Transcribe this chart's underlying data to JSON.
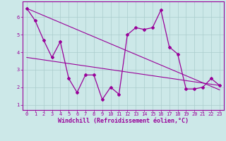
{
  "title": "",
  "xlabel": "Windchill (Refroidissement éolien,°C)",
  "ylabel": "",
  "bg_color": "#cce8e8",
  "line_color": "#990099",
  "grid_color": "#aacccc",
  "hours": [
    0,
    1,
    2,
    3,
    4,
    5,
    6,
    7,
    8,
    9,
    10,
    11,
    12,
    13,
    14,
    15,
    16,
    17,
    18,
    19,
    20,
    21,
    22,
    23
  ],
  "windchill": [
    6.5,
    5.8,
    4.7,
    3.7,
    4.6,
    2.5,
    1.7,
    2.7,
    2.7,
    1.3,
    2.0,
    1.6,
    5.0,
    5.4,
    5.3,
    5.4,
    6.4,
    4.3,
    3.9,
    1.9,
    1.9,
    2.0,
    2.5,
    2.1
  ],
  "trend1_x": [
    0,
    23
  ],
  "trend1_y": [
    6.5,
    1.85
  ],
  "trend2_x": [
    0,
    23
  ],
  "trend2_y": [
    3.7,
    2.1
  ],
  "ylim": [
    0.7,
    6.9
  ],
  "xlim": [
    -0.5,
    23.5
  ],
  "yticks": [
    1,
    2,
    3,
    4,
    5,
    6
  ],
  "xticks": [
    0,
    1,
    2,
    3,
    4,
    5,
    6,
    7,
    8,
    9,
    10,
    11,
    12,
    13,
    14,
    15,
    16,
    17,
    18,
    19,
    20,
    21,
    22,
    23
  ],
  "tick_fontsize": 5.0,
  "xlabel_fontsize": 6.0,
  "marker": "D",
  "markersize": 2.0,
  "linewidth": 0.9,
  "trend_linewidth": 0.8
}
